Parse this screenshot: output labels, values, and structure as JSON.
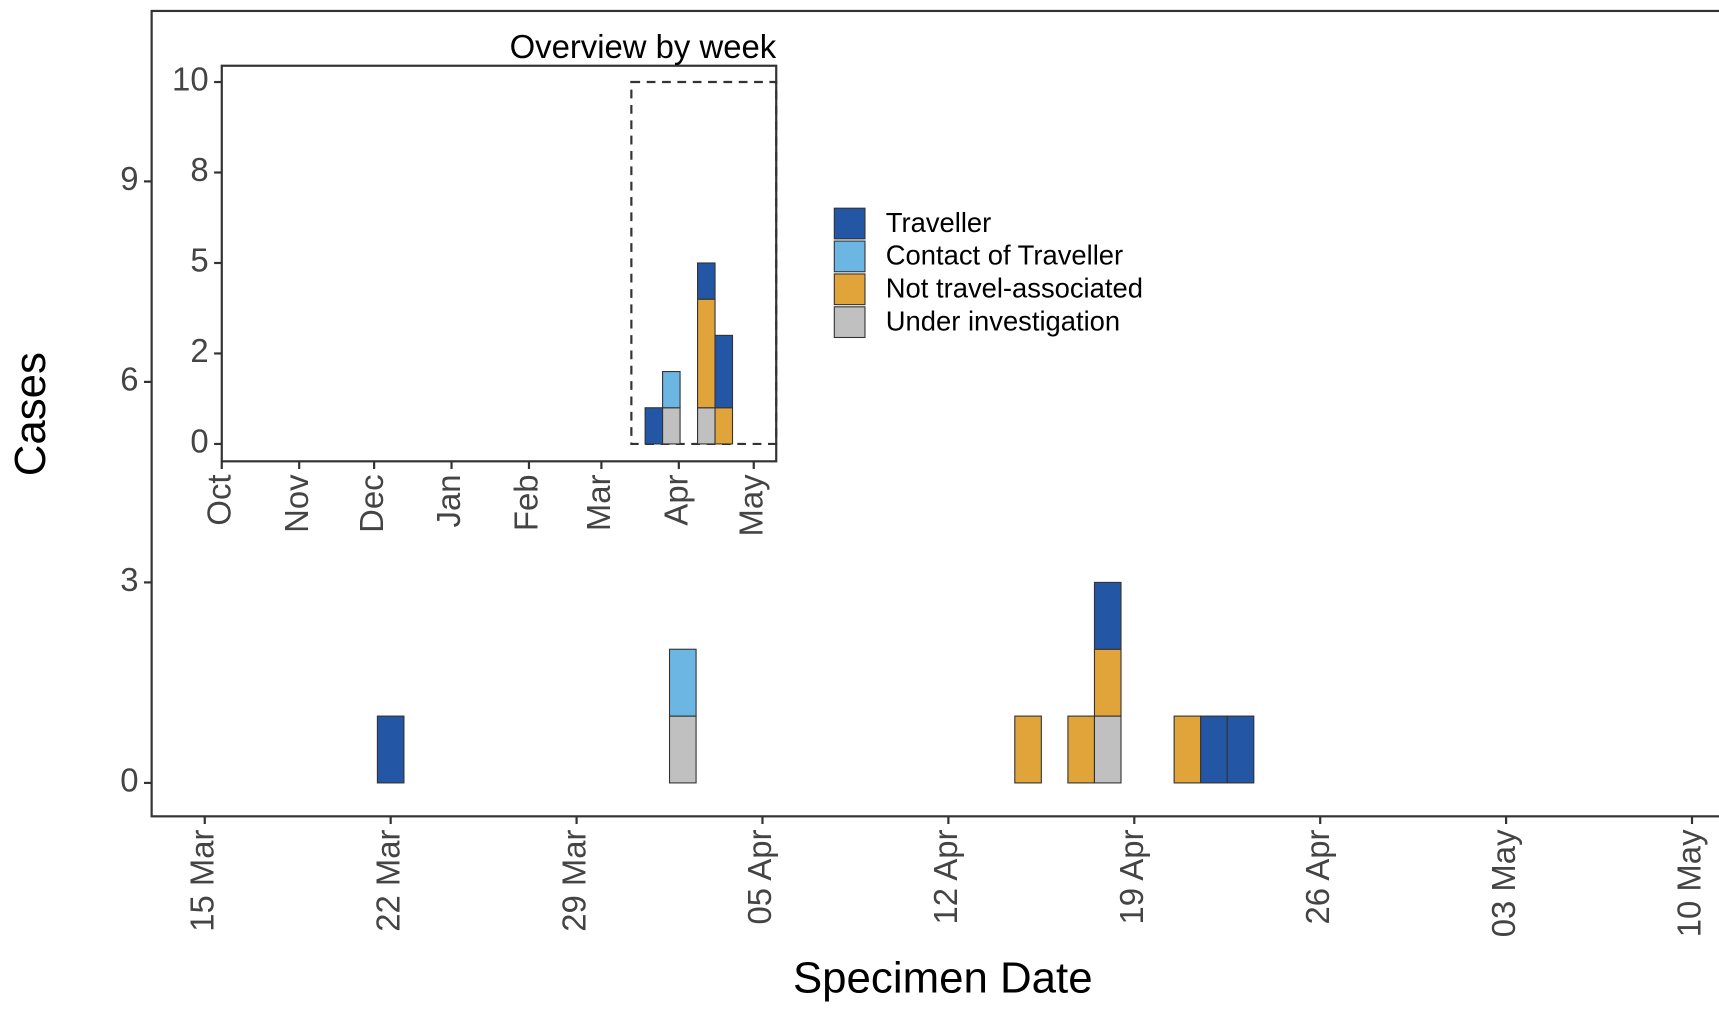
{
  "chart_data": [
    {
      "type": "bar",
      "stacked": true,
      "x_label": "Specimen Date",
      "y_label": "Cases",
      "x": [
        "22 Mar",
        "02 Apr",
        "15 Apr",
        "17 Apr",
        "18 Apr",
        "21 Apr",
        "22 Apr",
        "23 Apr"
      ],
      "series": [
        {
          "name": "Traveller",
          "color": "#2356a4",
          "values": [
            1,
            0,
            0,
            0,
            1,
            0,
            1,
            1
          ]
        },
        {
          "name": "Contact of Traveller",
          "color": "#6cb6e4",
          "values": [
            0,
            1,
            0,
            0,
            0,
            0,
            0,
            0
          ]
        },
        {
          "name": "Not travel-associated",
          "color": "#e0a43a",
          "values": [
            0,
            0,
            1,
            1,
            1,
            1,
            0,
            0
          ]
        },
        {
          "name": "Under investigation",
          "color": "#c0c0c0",
          "values": [
            0,
            1,
            0,
            0,
            1,
            0,
            0,
            0
          ]
        }
      ],
      "xlim": [
        "13 Mar",
        "11 May"
      ],
      "xticks": [
        "15 Mar",
        "22 Mar",
        "29 Mar",
        "05 Apr",
        "12 Apr",
        "19 Apr",
        "26 Apr",
        "03 May",
        "10 May"
      ],
      "ylim": [
        -0.5,
        11.55
      ],
      "yticks": [
        0,
        3,
        6,
        9
      ],
      "legend": "right",
      "grid": false
    },
    {
      "type": "bar",
      "stacked": true,
      "title": "Overview by week",
      "x": [
        "22 Mar",
        "29 Mar",
        "12 Apr",
        "19 Apr"
      ],
      "series": [
        {
          "name": "Traveller",
          "color": "#2356a4",
          "values": [
            1,
            0,
            1,
            2
          ]
        },
        {
          "name": "Contact of Traveller",
          "color": "#6cb6e4",
          "values": [
            0,
            1,
            0,
            0
          ]
        },
        {
          "name": "Not travel-associated",
          "color": "#e0a43a",
          "values": [
            0,
            0,
            3,
            1
          ]
        },
        {
          "name": "Under investigation",
          "color": "#c0c0c0",
          "values": [
            0,
            1,
            1,
            0
          ]
        }
      ],
      "xlim": [
        "01 Oct",
        "10 May"
      ],
      "xticks": [
        {
          "value": "01 Oct",
          "label": "Oct"
        },
        {
          "value": "01 Nov",
          "label": "Nov"
        },
        {
          "value": "01 Dec",
          "label": "Dec"
        },
        {
          "value": "01 Jan",
          "label": "Jan"
        },
        {
          "value": "01 Feb",
          "label": "Feb"
        },
        {
          "value": "01 Mar",
          "label": "Mar"
        },
        {
          "value": "01 Apr",
          "label": "Apr"
        },
        {
          "value": "01 May",
          "label": "May"
        }
      ],
      "ylim": [
        -0.48,
        10.45
      ],
      "yticks": [
        0,
        {
          "value": 2.5,
          "label": "2"
        },
        5,
        {
          "value": 7.5,
          "label": "8"
        },
        10
      ],
      "highlight": {
        "x": [
          "13 Mar",
          "11 May"
        ],
        "y": [
          0,
          10
        ]
      },
      "grid": false
    }
  ]
}
